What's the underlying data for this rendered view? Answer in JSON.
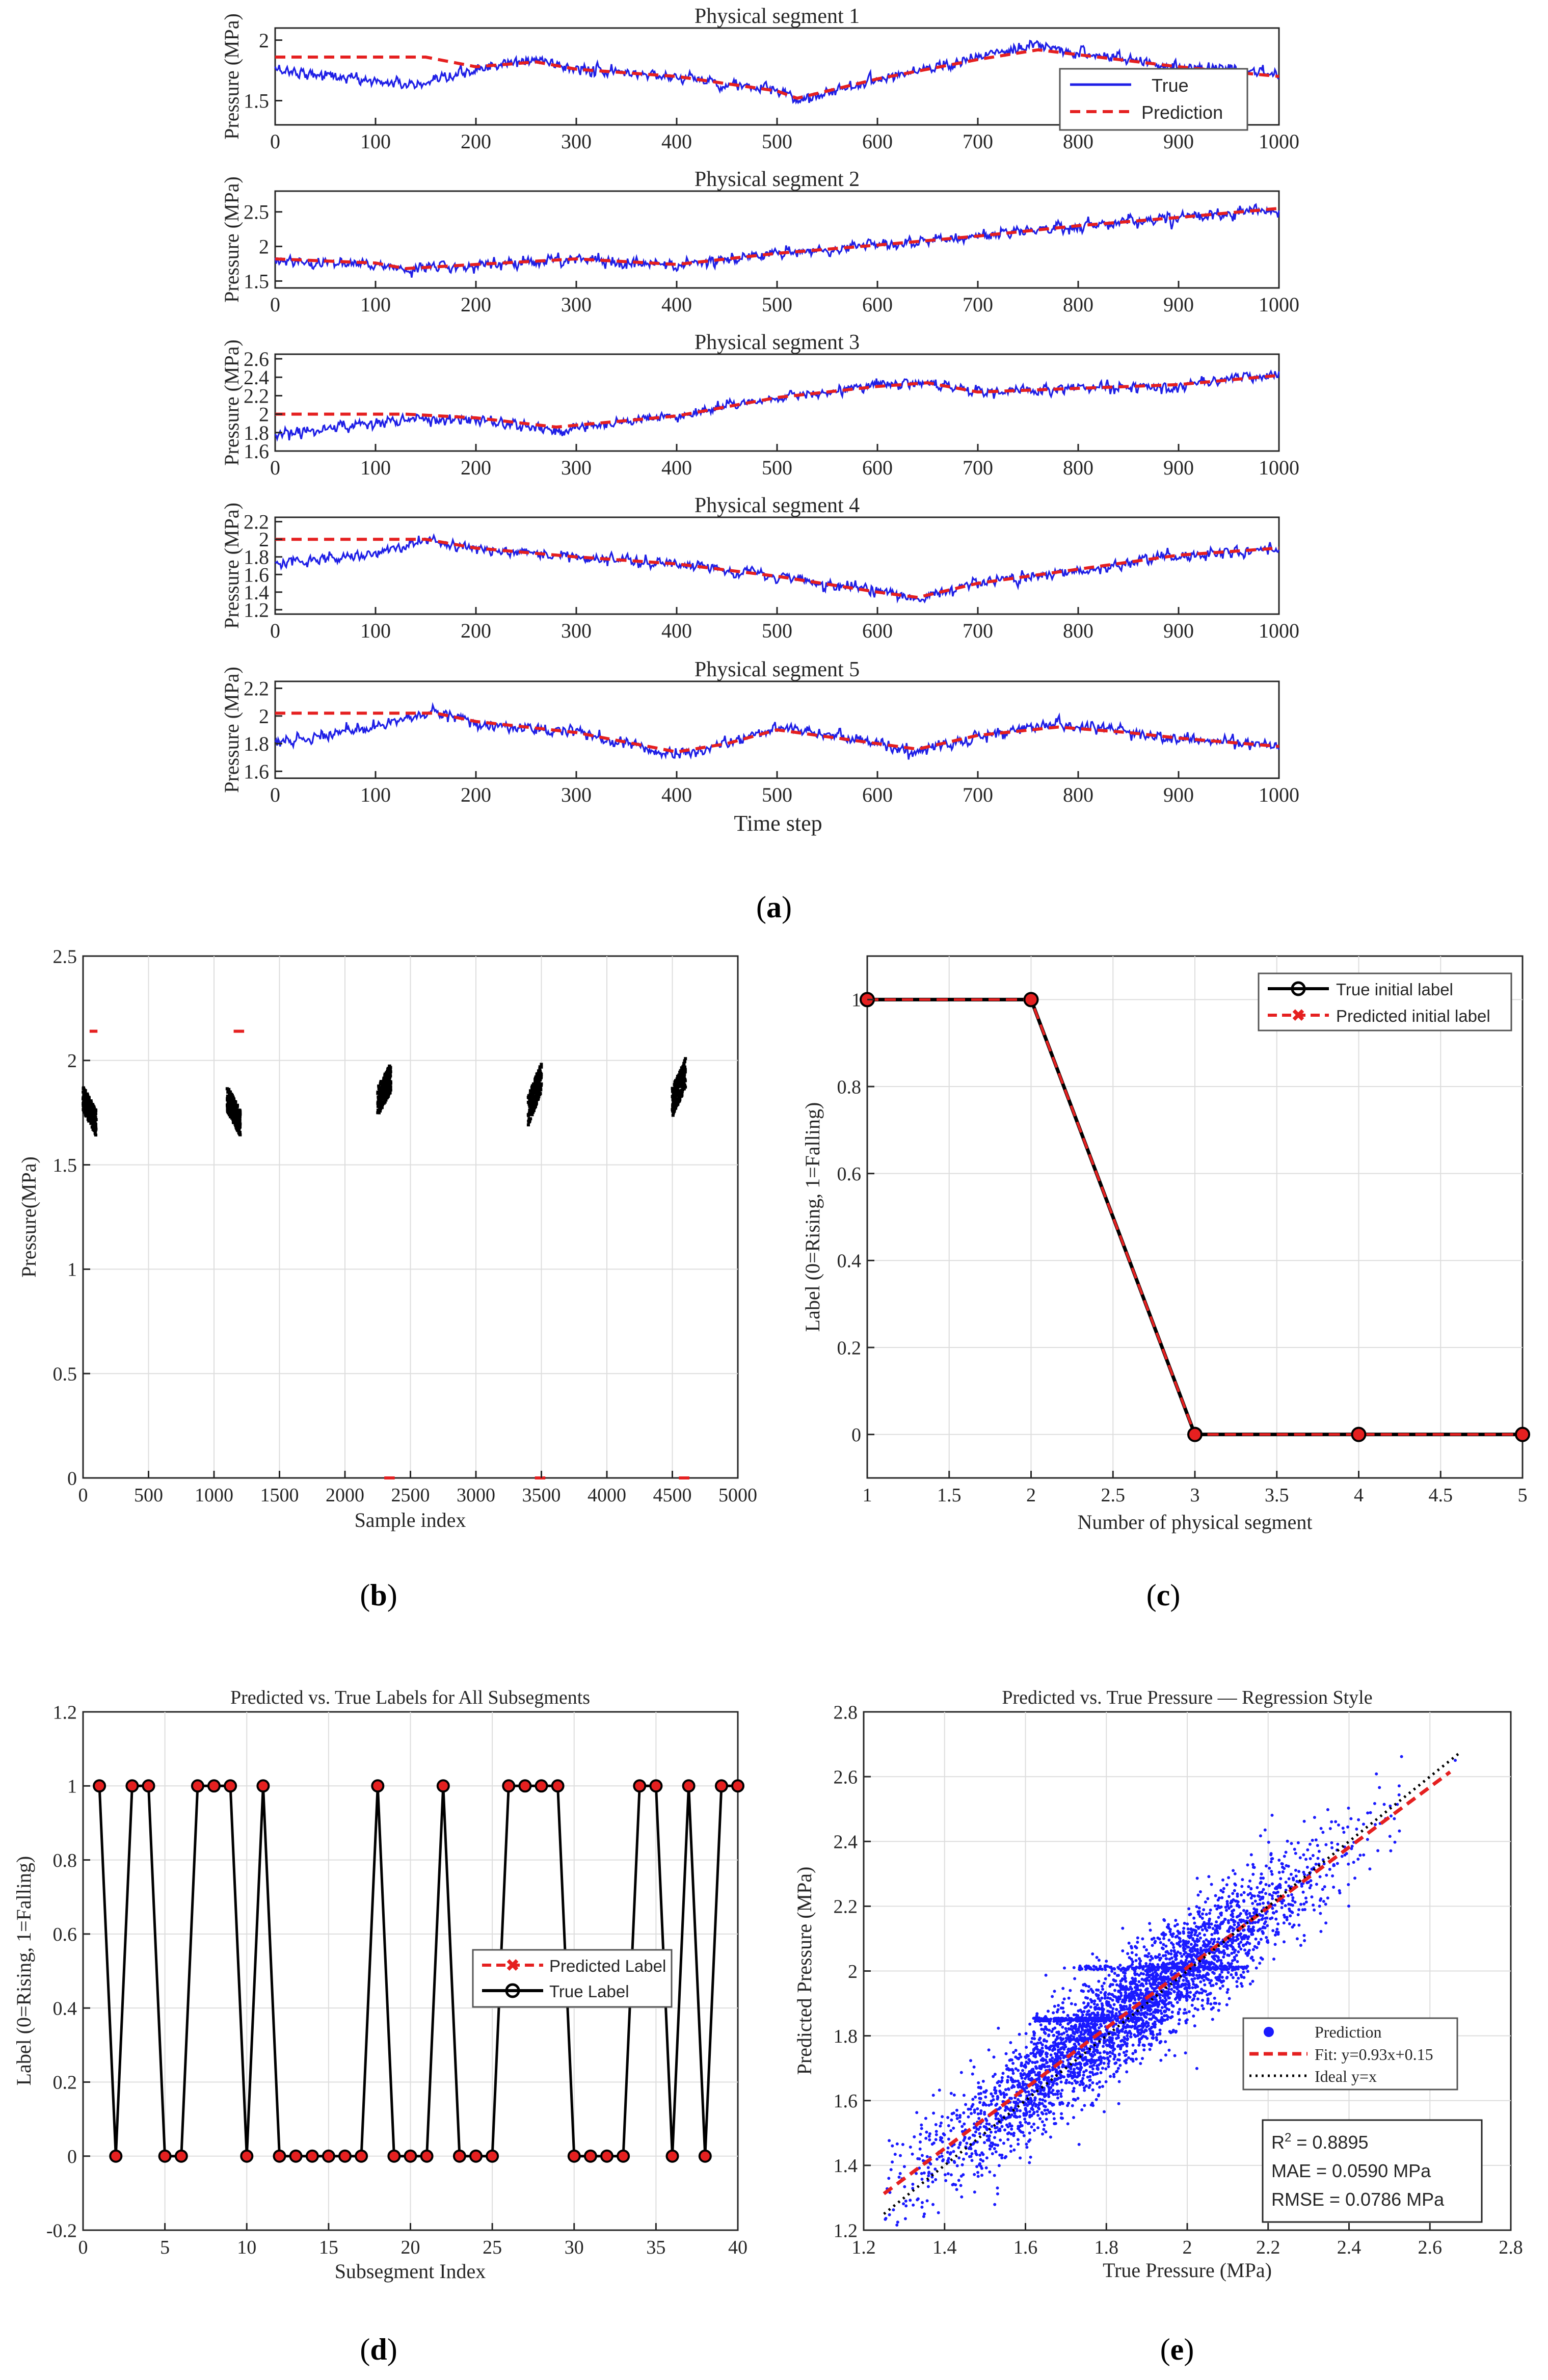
{
  "colors": {
    "true_blue": "#1f1fe6",
    "pred_red": "#e52020",
    "black": "#000000",
    "scatter_blue": "#1a1aff",
    "grid": "#dddddd"
  },
  "panels": {
    "a": {
      "label": "(a)"
    },
    "b": {
      "label": "(b)"
    },
    "c": {
      "label": "(c)"
    },
    "d": {
      "label": "(d)"
    },
    "e": {
      "label": "(e)"
    }
  },
  "chart_data": [
    {
      "id": "a",
      "type": "line",
      "xlabel": "Time step",
      "ylabel": "Pressure (MPa)",
      "xlim": [
        0,
        1000
      ],
      "xticks": [
        "0",
        "100",
        "200",
        "300",
        "400",
        "500",
        "600",
        "700",
        "800",
        "900",
        "1000"
      ],
      "legend": [
        "True",
        "Prediction"
      ],
      "legend_position": "top-right of first subplot",
      "subplots": [
        {
          "title": "Physical segment 1",
          "ylim": [
            1.3,
            2.1
          ],
          "yticks": [
            "1.5",
            "2"
          ],
          "true_trend": [
            [
              0,
              1.76
            ],
            [
              100,
              1.66
            ],
            [
              150,
              1.62
            ],
            [
              200,
              1.76
            ],
            [
              260,
              1.84
            ],
            [
              300,
              1.76
            ],
            [
              400,
              1.7
            ],
            [
              500,
              1.58
            ],
            [
              520,
              1.5
            ],
            [
              600,
              1.68
            ],
            [
              700,
              1.86
            ],
            [
              760,
              1.95
            ],
            [
              800,
              1.9
            ],
            [
              900,
              1.78
            ],
            [
              1000,
              1.72
            ]
          ],
          "pred_trend": [
            [
              0,
              1.86
            ],
            [
              150,
              1.86
            ],
            [
              200,
              1.78
            ],
            [
              260,
              1.82
            ],
            [
              300,
              1.76
            ],
            [
              400,
              1.7
            ],
            [
              500,
              1.58
            ],
            [
              520,
              1.52
            ],
            [
              600,
              1.68
            ],
            [
              700,
              1.84
            ],
            [
              760,
              1.92
            ],
            [
              800,
              1.88
            ],
            [
              900,
              1.78
            ],
            [
              1000,
              1.7
            ]
          ]
        },
        {
          "title": "Physical segment 2",
          "ylim": [
            1.4,
            2.8
          ],
          "yticks": [
            "1.5",
            "2",
            "2.5"
          ],
          "true_trend": [
            [
              0,
              1.8
            ],
            [
              100,
              1.74
            ],
            [
              130,
              1.66
            ],
            [
              200,
              1.74
            ],
            [
              300,
              1.82
            ],
            [
              400,
              1.72
            ],
            [
              500,
              1.9
            ],
            [
              600,
              2.02
            ],
            [
              700,
              2.15
            ],
            [
              800,
              2.3
            ],
            [
              900,
              2.42
            ],
            [
              1000,
              2.55
            ]
          ],
          "pred_trend": [
            [
              0,
              1.82
            ],
            [
              100,
              1.76
            ],
            [
              130,
              1.68
            ],
            [
              200,
              1.74
            ],
            [
              300,
              1.82
            ],
            [
              400,
              1.74
            ],
            [
              500,
              1.9
            ],
            [
              600,
              2.02
            ],
            [
              700,
              2.15
            ],
            [
              800,
              2.3
            ],
            [
              900,
              2.42
            ],
            [
              1000,
              2.55
            ]
          ]
        },
        {
          "title": "Physical segment 3",
          "ylim": [
            1.6,
            2.65
          ],
          "yticks": [
            "1.6",
            "1.8",
            "2",
            "2.2",
            "2.4",
            "2.6"
          ],
          "true_trend": [
            [
              0,
              1.76
            ],
            [
              50,
              1.84
            ],
            [
              130,
              1.94
            ],
            [
              200,
              1.94
            ],
            [
              280,
              1.82
            ],
            [
              300,
              1.86
            ],
            [
              400,
              1.98
            ],
            [
              500,
              2.18
            ],
            [
              600,
              2.32
            ],
            [
              650,
              2.34
            ],
            [
              700,
              2.24
            ],
            [
              800,
              2.28
            ],
            [
              900,
              2.32
            ],
            [
              1000,
              2.44
            ]
          ],
          "pred_trend": [
            [
              0,
              2.0
            ],
            [
              130,
              2.0
            ],
            [
              200,
              1.96
            ],
            [
              280,
              1.86
            ],
            [
              300,
              1.88
            ],
            [
              400,
              1.98
            ],
            [
              500,
              2.18
            ],
            [
              600,
              2.3
            ],
            [
              650,
              2.34
            ],
            [
              700,
              2.24
            ],
            [
              800,
              2.28
            ],
            [
              900,
              2.32
            ],
            [
              1000,
              2.42
            ]
          ]
        },
        {
          "title": "Physical segment 4",
          "ylim": [
            1.15,
            2.25
          ],
          "yticks": [
            "1.2",
            "1.4",
            "1.6",
            "1.8",
            "2",
            "2.2"
          ],
          "true_trend": [
            [
              0,
              1.72
            ],
            [
              100,
              1.84
            ],
            [
              150,
              2.0
            ],
            [
              200,
              1.9
            ],
            [
              300,
              1.8
            ],
            [
              400,
              1.72
            ],
            [
              500,
              1.58
            ],
            [
              600,
              1.4
            ],
            [
              640,
              1.32
            ],
            [
              700,
              1.5
            ],
            [
              800,
              1.64
            ],
            [
              900,
              1.82
            ],
            [
              1000,
              1.9
            ]
          ],
          "pred_trend": [
            [
              0,
              2.0
            ],
            [
              150,
              2.0
            ],
            [
              200,
              1.9
            ],
            [
              300,
              1.8
            ],
            [
              400,
              1.72
            ],
            [
              500,
              1.58
            ],
            [
              600,
              1.4
            ],
            [
              640,
              1.34
            ],
            [
              700,
              1.5
            ],
            [
              800,
              1.66
            ],
            [
              900,
              1.82
            ],
            [
              1000,
              1.9
            ]
          ]
        },
        {
          "title": "Physical segment 5",
          "ylim": [
            1.55,
            2.25
          ],
          "yticks": [
            "1.6",
            "1.8",
            "2",
            "2.2"
          ],
          "true_trend": [
            [
              0,
              1.8
            ],
            [
              100,
              1.92
            ],
            [
              160,
              2.04
            ],
            [
              200,
              1.94
            ],
            [
              300,
              1.88
            ],
            [
              400,
              1.72
            ],
            [
              450,
              1.8
            ],
            [
              500,
              1.92
            ],
            [
              600,
              1.8
            ],
            [
              640,
              1.74
            ],
            [
              700,
              1.86
            ],
            [
              780,
              1.94
            ],
            [
              850,
              1.88
            ],
            [
              900,
              1.84
            ],
            [
              1000,
              1.78
            ]
          ],
          "pred_trend": [
            [
              0,
              2.02
            ],
            [
              160,
              2.02
            ],
            [
              200,
              1.96
            ],
            [
              300,
              1.88
            ],
            [
              400,
              1.74
            ],
            [
              450,
              1.8
            ],
            [
              500,
              1.9
            ],
            [
              600,
              1.8
            ],
            [
              640,
              1.76
            ],
            [
              700,
              1.86
            ],
            [
              780,
              1.92
            ],
            [
              850,
              1.88
            ],
            [
              900,
              1.84
            ],
            [
              1000,
              1.78
            ]
          ]
        }
      ]
    },
    {
      "id": "b",
      "type": "scatter",
      "xlabel": "Sample index",
      "ylabel": "Pressure(MPa)",
      "xlim": [
        0,
        5000
      ],
      "ylim": [
        0,
        2.5
      ],
      "xticks": [
        "0",
        "500",
        "1000",
        "1500",
        "2000",
        "2500",
        "3000",
        "3500",
        "4000",
        "4500",
        "5000"
      ],
      "yticks": [
        "0",
        "0.5",
        "1",
        "1.5",
        "2",
        "2.5"
      ],
      "clusters": [
        {
          "x_range": [
            0,
            100
          ],
          "y_start": 1.82,
          "y_end": 1.7,
          "spread": 0.12
        },
        {
          "x_range": [
            1100,
            1200
          ],
          "y_start": 1.82,
          "y_end": 1.7,
          "spread": 0.12
        },
        {
          "x_range": [
            2250,
            2350
          ],
          "y_start": 1.8,
          "y_end": 1.92,
          "spread": 0.14
        },
        {
          "x_range": [
            3400,
            3500
          ],
          "y_start": 1.76,
          "y_end": 1.92,
          "spread": 0.14
        },
        {
          "x_range": [
            4500,
            4600
          ],
          "y_start": 1.8,
          "y_end": 1.94,
          "spread": 0.14
        }
      ],
      "red_marks": [
        {
          "x": [
            50,
            110
          ],
          "y": 2.14
        },
        {
          "x": [
            1150,
            1230
          ],
          "y": 2.14
        },
        {
          "x": [
            2300,
            2380
          ],
          "y": 0
        },
        {
          "x": [
            3450,
            3530
          ],
          "y": 0
        },
        {
          "x": [
            4550,
            4630
          ],
          "y": 0
        }
      ]
    },
    {
      "id": "c",
      "type": "line",
      "xlabel": "Number of physical segment",
      "ylabel": "Label (0=Rising, 1=Falling)",
      "xlim": [
        1,
        5
      ],
      "ylim": [
        -0.1,
        1.1
      ],
      "xticks": [
        "1",
        "1.5",
        "2",
        "2.5",
        "3",
        "3.5",
        "4",
        "4.5",
        "5"
      ],
      "yticks": [
        "0",
        "0.2",
        "0.4",
        "0.6",
        "0.8",
        "1"
      ],
      "x": [
        1,
        2,
        3,
        4,
        5
      ],
      "series": [
        {
          "name": "True initial label",
          "values": [
            1,
            1,
            0,
            0,
            0
          ]
        },
        {
          "name": "Predicted initial label",
          "values": [
            1,
            1,
            0,
            0,
            0
          ]
        }
      ],
      "legend_position": "top-right"
    },
    {
      "id": "d",
      "type": "line",
      "title": "Predicted vs. True Labels for All Subsegments",
      "xlabel": "Subsegment Index",
      "ylabel": "Label (0=Rising, 1=Falling)",
      "xlim": [
        0,
        40
      ],
      "ylim": [
        -0.2,
        1.2
      ],
      "xticks": [
        "0",
        "5",
        "10",
        "15",
        "20",
        "25",
        "30",
        "35",
        "40"
      ],
      "yticks": [
        "-0.2",
        "0",
        "0.2",
        "0.4",
        "0.6",
        "0.8",
        "1",
        "1.2"
      ],
      "x": [
        1,
        2,
        3,
        4,
        5,
        6,
        7,
        8,
        9,
        10,
        11,
        12,
        13,
        14,
        15,
        16,
        17,
        18,
        19,
        20,
        21,
        22,
        23,
        24,
        25,
        26,
        27,
        28,
        29,
        30,
        31,
        32,
        33,
        34,
        35,
        36,
        37,
        38,
        39,
        40
      ],
      "series": [
        {
          "name": "Predicted Label",
          "values": [
            1,
            0,
            1,
            1,
            0,
            0,
            1,
            1,
            1,
            0,
            1,
            0,
            0,
            0,
            0,
            0,
            0,
            1,
            0,
            0,
            0,
            1,
            0,
            0,
            0,
            1,
            1,
            1,
            1,
            0,
            0,
            0,
            0,
            1,
            1,
            0,
            1,
            0,
            1,
            1
          ]
        },
        {
          "name": "True Label",
          "values": [
            1,
            0,
            1,
            1,
            0,
            0,
            1,
            1,
            1,
            0,
            1,
            0,
            0,
            0,
            0,
            0,
            0,
            1,
            0,
            0,
            0,
            1,
            0,
            0,
            0,
            1,
            1,
            1,
            1,
            0,
            0,
            0,
            0,
            1,
            1,
            0,
            1,
            0,
            1,
            1
          ]
        }
      ],
      "legend_position": "center-right"
    },
    {
      "id": "e",
      "type": "scatter",
      "title": "Predicted vs. True Pressure — Regression Style",
      "xlabel": "True Pressure (MPa)",
      "ylabel": "Predicted Pressure (MPa)",
      "xlim": [
        1.2,
        2.8
      ],
      "ylim": [
        1.2,
        2.8
      ],
      "xticks": [
        "1.2",
        "1.4",
        "1.6",
        "1.8",
        "2",
        "2.2",
        "2.4",
        "2.6",
        "2.8"
      ],
      "yticks": [
        "1.2",
        "1.4",
        "1.6",
        "1.8",
        "2",
        "2.2",
        "2.4",
        "2.6",
        "2.8"
      ],
      "fit": {
        "slope": 0.93,
        "intercept": 0.15,
        "x_range": [
          1.25,
          2.65
        ]
      },
      "ideal": {
        "x_range": [
          1.25,
          2.67
        ]
      },
      "point_cloud": {
        "x_range": [
          1.25,
          2.67
        ],
        "spread": 0.085
      },
      "horizontal_bands": [
        {
          "y": 2.01,
          "x_range": [
            1.72,
            2.15
          ]
        },
        {
          "y": 1.85,
          "x_range": [
            1.62,
            1.8
          ]
        }
      ],
      "legend": [
        "Prediction",
        "Fit: y=0.93x+0.15",
        "Ideal y=x"
      ],
      "stats": {
        "r2_prefix": "R",
        "r2_sup": "2",
        "r2_value": " = 0.8895",
        "mae": "MAE = 0.0590 MPa",
        "rmse": "RMSE = 0.0786 MPa"
      }
    }
  ]
}
